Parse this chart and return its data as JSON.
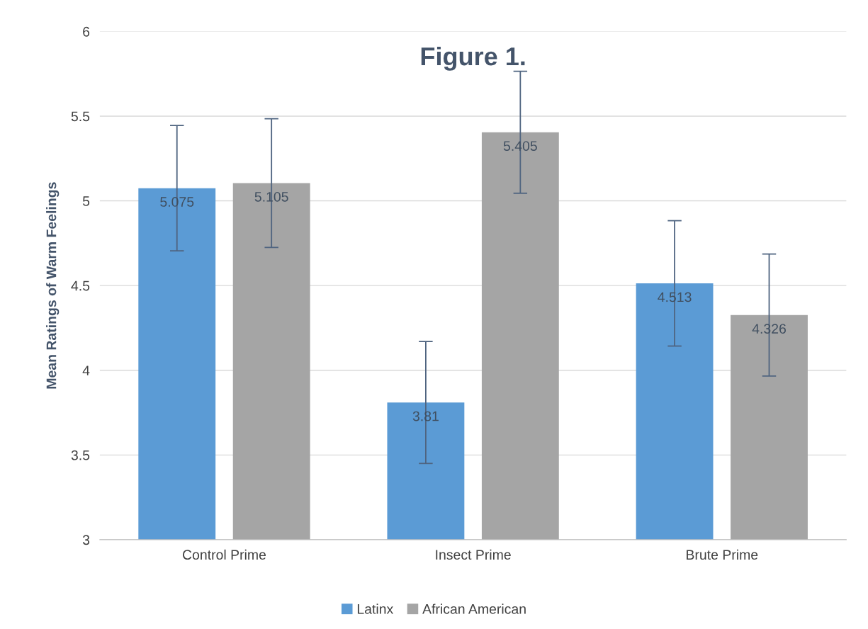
{
  "chart_data": {
    "type": "bar",
    "title": "Figure 1.",
    "ylabel": "Mean Ratings of Warm Feelings",
    "categories": [
      "Control Prime",
      "Insect Prime",
      "Brute Prime"
    ],
    "series": [
      {
        "name": "Latinx",
        "color": "#5b9bd5",
        "values": [
          5.075,
          3.81,
          4.513
        ],
        "errors": [
          0.37,
          0.36,
          0.37
        ]
      },
      {
        "name": "African American",
        "color": "#a5a5a5",
        "values": [
          5.105,
          5.405,
          4.326
        ],
        "errors": [
          0.38,
          0.36,
          0.36
        ]
      }
    ],
    "ylim": [
      3,
      6
    ],
    "yticks": [
      3,
      3.5,
      4,
      4.5,
      5,
      5.5,
      6
    ],
    "grid": "y",
    "legend": "bottom",
    "data_labels": true
  }
}
